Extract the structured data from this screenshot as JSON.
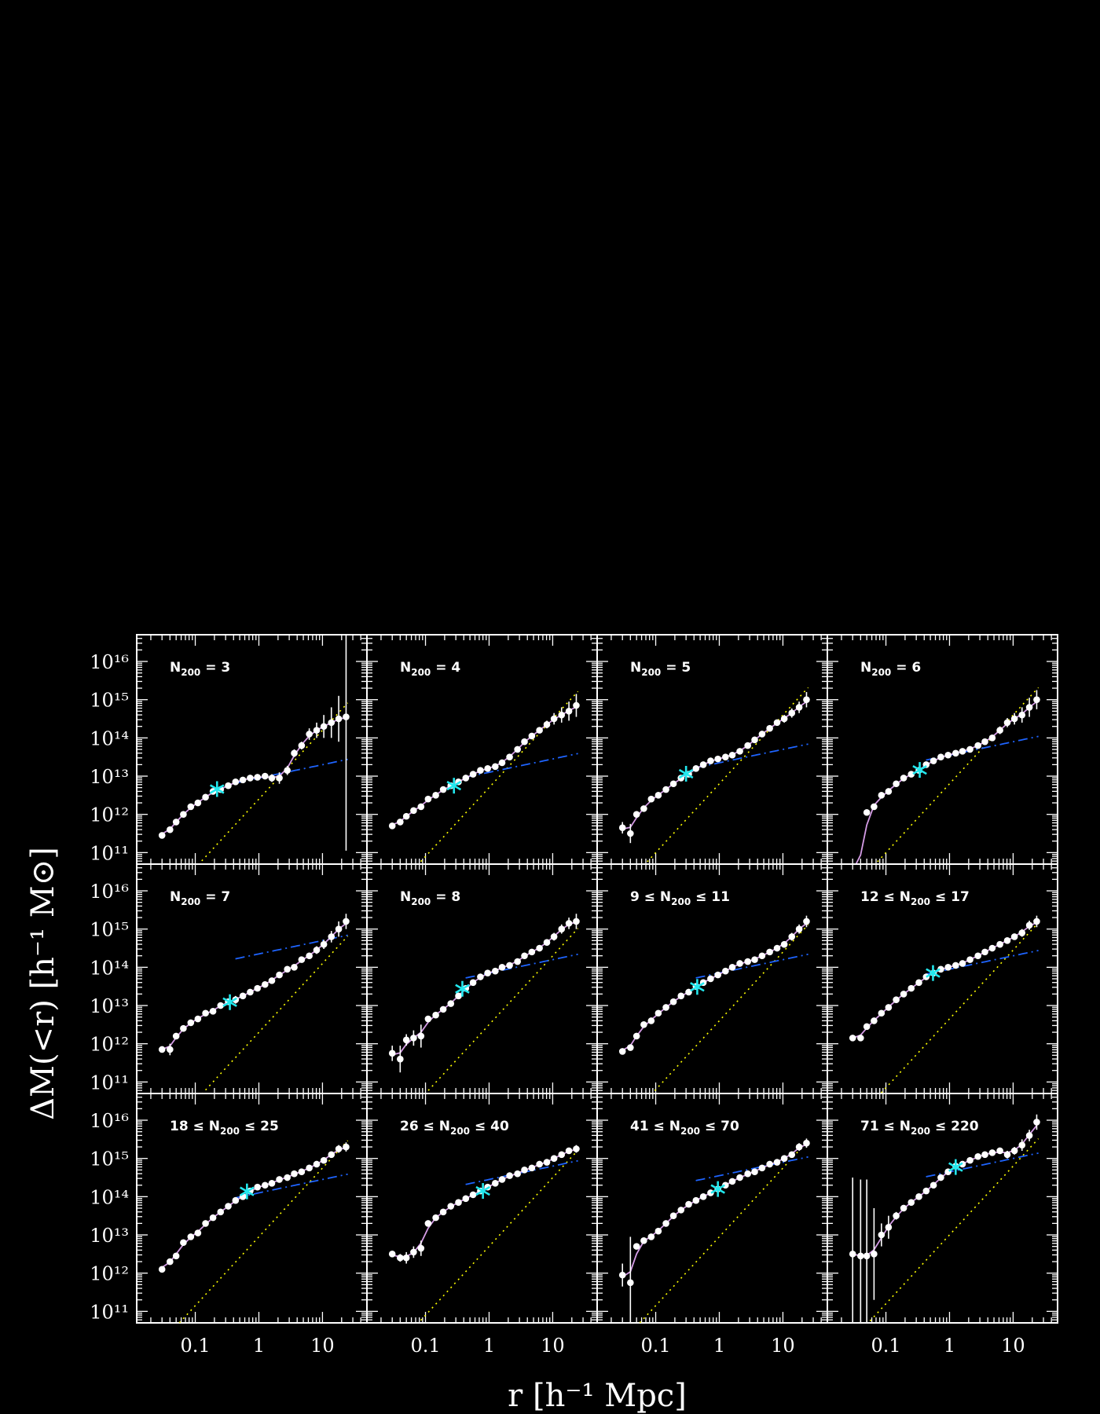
{
  "colors": {
    "background": "#000000",
    "axes": "#ffffff",
    "points": "#ffffff",
    "fit_total": "#d59ce6",
    "fit_inner": "#1e64ff",
    "fit_outer": "#ffff00",
    "marker": "#22e8ee"
  },
  "chart_data": {
    "type": "scatter",
    "layout": "grid of 3 rows by 4 columns, shared axes",
    "xscale": "log",
    "yscale": "log",
    "xlim": [
      0.012,
      50
    ],
    "ylim": [
      50000000000.0,
      5e+16
    ],
    "xlabel": "r [h⁻¹ Mpc]",
    "ylabel": "ΔM(<r) [h⁻¹ M⊙]",
    "x_ticklabels": [
      "0.1",
      "1",
      "10"
    ],
    "y_ticklabels": [
      "10¹¹",
      "10¹²",
      "10¹³",
      "10¹⁴",
      "10¹⁵",
      "10¹⁶"
    ],
    "radii": [
      0.03,
      0.04,
      0.05,
      0.065,
      0.085,
      0.11,
      0.145,
      0.19,
      0.25,
      0.33,
      0.43,
      0.56,
      0.73,
      0.95,
      1.25,
      1.6,
      2.1,
      2.8,
      3.6,
      4.7,
      6.2,
      8.1,
      10.5,
      13.8,
      18,
      23.5
    ],
    "series_styles": {
      "data": "white points with error bars",
      "total_fit": "solid pink line",
      "inner_fit": "dash-dot blue line",
      "outer_fit": "dotted yellow line",
      "marker": "cyan asterisk"
    },
    "panels": [
      {
        "label": "N₂₀₀ = 3",
        "label_parts": [
          "N",
          "200",
          " = 3"
        ],
        "log_mass": [
          11.45,
          11.6,
          11.8,
          12.0,
          12.2,
          12.3,
          12.45,
          12.6,
          12.65,
          12.75,
          12.85,
          12.9,
          12.95,
          12.97,
          13.0,
          12.95,
          12.95,
          13.15,
          13.6,
          13.8,
          14.1,
          14.2,
          14.3,
          14.4,
          14.5,
          14.55
        ],
        "log_err": [
          0.05,
          0.05,
          0.05,
          0.05,
          0.05,
          0.05,
          0.05,
          0.05,
          0.05,
          0.05,
          0.06,
          0.06,
          0.06,
          0.06,
          0.06,
          0.1,
          0.15,
          0.12,
          0.1,
          0.1,
          0.15,
          0.2,
          0.3,
          0.4,
          0.6,
          3.5
        ],
        "inner_at_10": 13.3,
        "outer_at_10": 14.2,
        "marker_r": 0.22
      },
      {
        "label": "N₂₀₀ = 4",
        "label_parts": [
          "N",
          "200",
          " = 4"
        ],
        "log_mass": [
          11.7,
          11.8,
          11.95,
          12.1,
          12.2,
          12.4,
          12.5,
          12.65,
          12.75,
          12.85,
          12.95,
          13.05,
          13.15,
          13.2,
          13.25,
          13.35,
          13.5,
          13.7,
          13.9,
          14.05,
          14.2,
          14.35,
          14.5,
          14.6,
          14.7,
          14.85
        ],
        "log_err": [
          0.05,
          0.05,
          0.05,
          0.05,
          0.05,
          0.05,
          0.05,
          0.05,
          0.05,
          0.05,
          0.06,
          0.06,
          0.06,
          0.06,
          0.06,
          0.06,
          0.07,
          0.07,
          0.08,
          0.08,
          0.08,
          0.1,
          0.15,
          0.2,
          0.25,
          0.3
        ],
        "inner_at_10": 13.45,
        "outer_at_10": 14.5,
        "marker_r": 0.28
      },
      {
        "label": "N₂₀₀ = 5",
        "label_parts": [
          "N",
          "200",
          " = 5"
        ],
        "log_mass": [
          11.65,
          11.5,
          12.0,
          12.15,
          12.4,
          12.5,
          12.65,
          12.8,
          12.95,
          13.05,
          13.2,
          13.3,
          13.4,
          13.45,
          13.5,
          13.55,
          13.65,
          13.8,
          13.95,
          14.1,
          14.25,
          14.4,
          14.5,
          14.65,
          14.8,
          15.0
        ],
        "log_err": [
          0.15,
          0.25,
          0.05,
          0.05,
          0.05,
          0.05,
          0.05,
          0.05,
          0.05,
          0.05,
          0.05,
          0.05,
          0.05,
          0.06,
          0.06,
          0.06,
          0.06,
          0.06,
          0.06,
          0.07,
          0.07,
          0.08,
          0.1,
          0.12,
          0.15,
          0.2
        ],
        "inner_at_10": 13.7,
        "outer_at_10": 14.6,
        "marker_r": 0.3
      },
      {
        "label": "N₂₀₀ = 6",
        "label_parts": [
          "N",
          "200",
          " = 6"
        ],
        "log_mass": [
          10.5,
          10.6,
          12.05,
          12.2,
          12.5,
          12.6,
          12.8,
          12.95,
          13.05,
          13.15,
          13.3,
          13.4,
          13.5,
          13.55,
          13.6,
          13.65,
          13.7,
          13.8,
          13.9,
          14.0,
          14.2,
          14.4,
          14.5,
          14.6,
          14.8,
          15.0
        ],
        "log_err": [
          0.05,
          0.05,
          0.05,
          0.08,
          0.06,
          0.06,
          0.06,
          0.06,
          0.06,
          0.06,
          0.06,
          0.06,
          0.06,
          0.06,
          0.06,
          0.06,
          0.06,
          0.07,
          0.08,
          0.08,
          0.1,
          0.12,
          0.15,
          0.2,
          0.25,
          0.25
        ],
        "inner_at_10": 13.9,
        "outer_at_10": 14.6,
        "marker_r": 0.34
      },
      {
        "label": "N₂₀₀ = 7",
        "label_parts": [
          "N",
          "200",
          " = 7"
        ],
        "log_mass": [
          11.85,
          11.85,
          12.2,
          12.4,
          12.55,
          12.65,
          12.8,
          12.85,
          13.0,
          13.1,
          13.15,
          13.25,
          13.35,
          13.45,
          13.55,
          13.65,
          13.8,
          13.95,
          14.0,
          14.2,
          14.3,
          14.45,
          14.6,
          14.8,
          15.0,
          15.2
        ],
        "log_err": [
          0.05,
          0.15,
          0.07,
          0.07,
          0.07,
          0.06,
          0.06,
          0.06,
          0.06,
          0.06,
          0.1,
          0.08,
          0.06,
          0.06,
          0.06,
          0.06,
          0.06,
          0.06,
          0.07,
          0.08,
          0.08,
          0.1,
          0.12,
          0.15,
          0.2,
          0.2
        ],
        "inner_at_10": 14.7,
        "outer_at_10": 14.1,
        "marker_r": 0.35
      },
      {
        "label": "N₂₀₀ = 8",
        "label_parts": [
          "N",
          "200",
          " = 8"
        ],
        "log_mass": [
          11.75,
          11.6,
          12.1,
          12.15,
          12.2,
          12.65,
          12.75,
          12.9,
          13.05,
          13.25,
          13.45,
          13.6,
          13.75,
          13.85,
          13.9,
          14.0,
          14.05,
          14.15,
          14.3,
          14.4,
          14.5,
          14.65,
          14.8,
          15.0,
          15.15,
          15.2
        ],
        "log_err": [
          0.2,
          0.35,
          0.15,
          0.2,
          0.3,
          0.06,
          0.06,
          0.08,
          0.06,
          0.06,
          0.06,
          0.06,
          0.06,
          0.06,
          0.06,
          0.06,
          0.06,
          0.06,
          0.06,
          0.07,
          0.07,
          0.08,
          0.1,
          0.12,
          0.15,
          0.2
        ],
        "inner_at_10": 14.2,
        "outer_at_10": 14.3,
        "marker_r": 0.38
      },
      {
        "label": "9 ≤ N₂₀₀ ≤ 11",
        "label_parts": [
          "9 ≤ N",
          "200",
          " ≤ 11"
        ],
        "log_mass": [
          11.8,
          11.9,
          12.2,
          12.5,
          12.6,
          12.8,
          12.95,
          13.1,
          13.25,
          13.35,
          13.5,
          13.6,
          13.7,
          13.8,
          13.9,
          14.0,
          14.1,
          14.15,
          14.2,
          14.3,
          14.4,
          14.5,
          14.6,
          14.8,
          15.0,
          15.2
        ],
        "log_err": [
          0.08,
          0.08,
          0.06,
          0.05,
          0.05,
          0.05,
          0.05,
          0.05,
          0.05,
          0.05,
          0.05,
          0.05,
          0.05,
          0.05,
          0.05,
          0.05,
          0.05,
          0.05,
          0.05,
          0.06,
          0.06,
          0.07,
          0.08,
          0.1,
          0.12,
          0.15
        ],
        "inner_at_10": 14.2,
        "outer_at_10": 14.4,
        "marker_r": 0.45
      },
      {
        "label": "12 ≤ N₂₀₀ ≤ 17",
        "label_parts": [
          "12 ≤ N",
          "200",
          " ≤ 17"
        ],
        "log_mass": [
          12.15,
          12.15,
          12.45,
          12.6,
          12.8,
          12.95,
          13.15,
          13.3,
          13.45,
          13.6,
          13.75,
          13.85,
          13.95,
          14.0,
          14.05,
          14.1,
          14.2,
          14.3,
          14.4,
          14.5,
          14.6,
          14.7,
          14.8,
          14.9,
          15.1,
          15.2
        ],
        "log_err": [
          0.05,
          0.05,
          0.05,
          0.05,
          0.05,
          0.05,
          0.05,
          0.05,
          0.05,
          0.05,
          0.05,
          0.05,
          0.05,
          0.05,
          0.05,
          0.05,
          0.05,
          0.05,
          0.05,
          0.06,
          0.06,
          0.07,
          0.08,
          0.1,
          0.12,
          0.15
        ],
        "inner_at_10": 14.3,
        "outer_at_10": 14.45,
        "marker_r": 0.55
      },
      {
        "label": "18 ≤ N₂₀₀ ≤ 25",
        "label_parts": [
          "18 ≤ N",
          "200",
          " ≤ 25"
        ],
        "log_mass": [
          12.1,
          12.3,
          12.45,
          12.8,
          12.95,
          13.05,
          13.3,
          13.45,
          13.6,
          13.75,
          13.9,
          14.0,
          14.15,
          14.25,
          14.3,
          14.35,
          14.45,
          14.5,
          14.6,
          14.65,
          14.75,
          14.85,
          14.95,
          15.1,
          15.25,
          15.3
        ],
        "log_err": [
          0.06,
          0.06,
          0.06,
          0.05,
          0.05,
          0.05,
          0.05,
          0.05,
          0.05,
          0.05,
          0.05,
          0.05,
          0.05,
          0.05,
          0.05,
          0.05,
          0.05,
          0.05,
          0.05,
          0.05,
          0.06,
          0.06,
          0.07,
          0.08,
          0.1,
          0.12
        ],
        "inner_at_10": 14.45,
        "outer_at_10": 14.75,
        "marker_r": 0.65
      },
      {
        "label": "26 ≤ N₂₀₀ ≤ 40",
        "label_parts": [
          "26 ≤ N",
          "200",
          " ≤ 40"
        ],
        "log_mass": [
          12.5,
          12.4,
          12.4,
          12.55,
          12.65,
          13.3,
          13.45,
          13.6,
          13.75,
          13.85,
          13.95,
          14.05,
          14.15,
          14.25,
          14.35,
          14.45,
          14.55,
          14.6,
          14.7,
          14.75,
          14.85,
          14.9,
          15.0,
          15.1,
          15.2,
          15.25
        ],
        "log_err": [
          0.05,
          0.1,
          0.15,
          0.15,
          0.2,
          0.05,
          0.05,
          0.05,
          0.05,
          0.05,
          0.05,
          0.05,
          0.05,
          0.05,
          0.05,
          0.05,
          0.05,
          0.05,
          0.05,
          0.05,
          0.05,
          0.06,
          0.06,
          0.07,
          0.08,
          0.1
        ],
        "inner_at_10": 14.8,
        "outer_at_10": 14.5,
        "marker_r": 0.8
      },
      {
        "label": "41 ≤ N₂₀₀ ≤ 70",
        "label_parts": [
          "41 ≤ N",
          "200",
          " ≤ 70"
        ],
        "log_mass": [
          11.95,
          11.75,
          12.7,
          12.85,
          12.95,
          13.1,
          13.3,
          13.5,
          13.65,
          13.8,
          13.9,
          14.0,
          14.1,
          14.2,
          14.3,
          14.4,
          14.5,
          14.6,
          14.65,
          14.75,
          14.85,
          14.9,
          15.0,
          15.1,
          15.3,
          15.4
        ],
        "log_err": [
          0.3,
          1.2,
          0.05,
          0.05,
          0.05,
          0.05,
          0.05,
          0.05,
          0.05,
          0.05,
          0.05,
          0.05,
          0.05,
          0.05,
          0.05,
          0.05,
          0.05,
          0.05,
          0.05,
          0.05,
          0.06,
          0.06,
          0.07,
          0.08,
          0.1,
          0.12
        ],
        "inner_at_10": 14.9,
        "outer_at_10": 14.75,
        "marker_r": 0.95
      },
      {
        "label": "71 ≤ N₂₀₀ ≤ 220",
        "label_parts": [
          "71 ≤ N",
          "200",
          " ≤ 220"
        ],
        "log_mass": [
          12.5,
          12.45,
          12.45,
          12.5,
          13.0,
          13.2,
          13.5,
          13.7,
          13.85,
          14.0,
          14.15,
          14.3,
          14.5,
          14.65,
          14.8,
          14.85,
          14.95,
          15.05,
          15.1,
          15.15,
          15.2,
          15.1,
          15.2,
          15.35,
          15.6,
          15.95
        ],
        "log_err": [
          2.0,
          2.0,
          2.0,
          1.2,
          0.3,
          0.3,
          0.1,
          0.08,
          0.07,
          0.06,
          0.06,
          0.05,
          0.05,
          0.05,
          0.05,
          0.05,
          0.05,
          0.06,
          0.06,
          0.06,
          0.07,
          0.1,
          0.1,
          0.15,
          0.15,
          0.2
        ],
        "inner_at_10": 15.0,
        "outer_at_10": 14.8,
        "marker_r": 1.25
      }
    ]
  }
}
